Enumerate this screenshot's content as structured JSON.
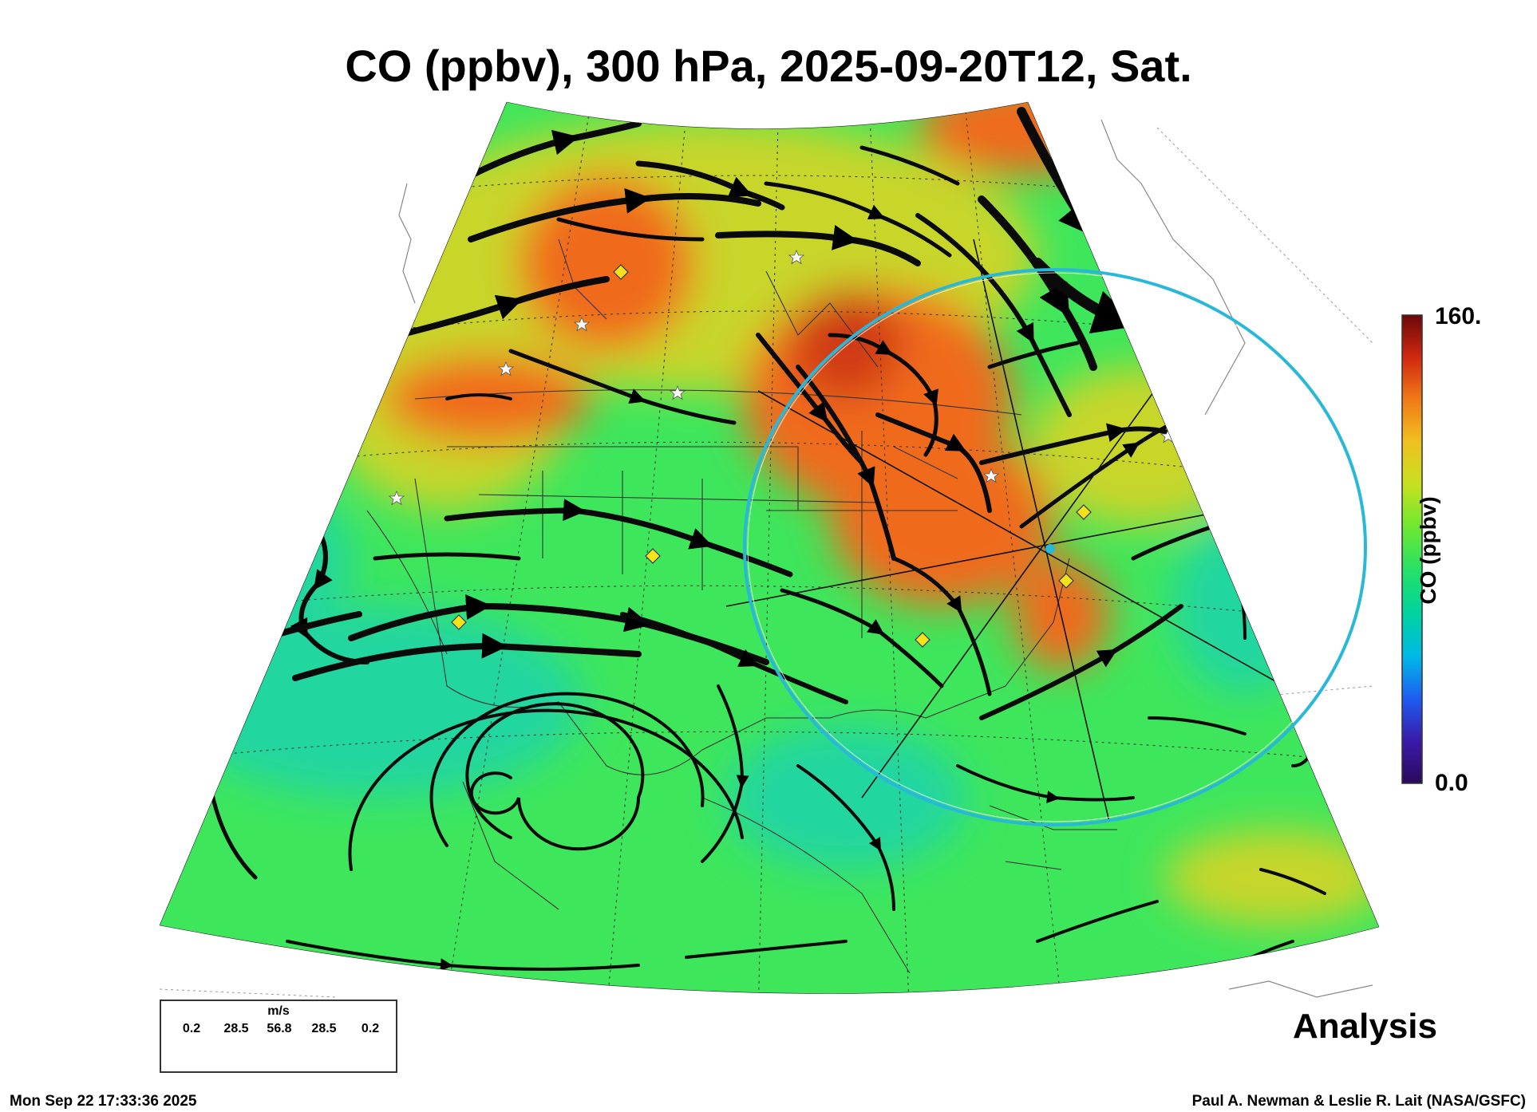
{
  "title": "CO (ppbv), 300 hPa, 2025-09-20T12, Sat.",
  "subtitle": "Analysis",
  "timestamp": "Mon Sep 22 17:33:36 2025",
  "credit": "Paul A. Newman & Leslie R. Lait (NASA/GSFC)",
  "colorbar": {
    "label": "CO (ppbv)",
    "max_label": "160.",
    "min_label": "0.0",
    "range": [
      0,
      160
    ],
    "colors": [
      "#2a0a5a",
      "#3a1aa8",
      "#1e5cf0",
      "#00b8e8",
      "#00d2a0",
      "#22e06a",
      "#70e830",
      "#c8e020",
      "#f0c020",
      "#f07a18",
      "#d02810",
      "#6a0808"
    ]
  },
  "wind_legend": {
    "unit": "m/s",
    "ticks": [
      "0.2",
      "28.5",
      "56.8",
      "28.5",
      "0.2"
    ]
  },
  "map": {
    "colors": {
      "background": "#3ee65c",
      "high": "#f06a1e",
      "very_high": "#d03a12",
      "mid": "#c8d62a",
      "low": "#22d6a0",
      "streamline": "#0a0a0a",
      "circle": "#2ab8d8",
      "marker": "#f5e31a"
    },
    "icons": [
      "streamline-arrow-icon",
      "yellow-diamond-icon",
      "white-star-icon",
      "center-point-icon"
    ]
  }
}
